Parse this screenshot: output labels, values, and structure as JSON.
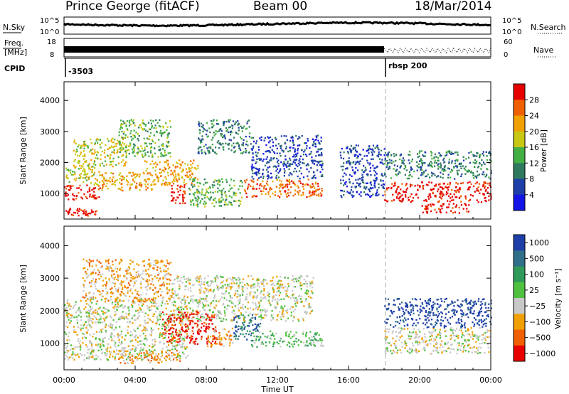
{
  "header": {
    "station": "Prince George (fitACF)",
    "beam": "Beam 00",
    "date": "18/Mar/2014"
  },
  "sky_panel": {
    "left_label": "N.Sky",
    "right_label": "N.Search",
    "left_ticks": [
      "10^5",
      "10^0"
    ],
    "right_ticks": [
      "10^5",
      "10^0"
    ]
  },
  "freq_panel": {
    "left_label_line1": "Freq.",
    "left_label_line2": "[MHz]",
    "right_label": "Nave",
    "left_ticks": [
      "18",
      "8"
    ],
    "right_ticks": [
      "60",
      "0"
    ]
  },
  "cpid_panel": {
    "label": "CPID",
    "segments": [
      {
        "text": "-3503",
        "start_hour": 0
      },
      {
        "text": "rbsp 200",
        "start_hour": 18
      }
    ]
  },
  "colors": {
    "power": [
      "#1414e6",
      "#1e3fa8",
      "#2f7a5e",
      "#44b044",
      "#c8c814",
      "#f0a000",
      "#f06000",
      "#e60000"
    ],
    "velocity": [
      "#1e3fa8",
      "#2f6f8a",
      "#2f9a5a",
      "#50c040",
      "#c8c8c8",
      "#f0a000",
      "#f06000",
      "#e60000"
    ],
    "ground_scatter": "#b4b4b4"
  },
  "chart_data": [
    {
      "type": "heatmap",
      "name": "power",
      "ylabel": "Slant Range [km]",
      "colorbar_label": "Power [dB]",
      "colorbar_ticks": [
        "4",
        "8",
        "12",
        "16",
        "20",
        "24",
        "28"
      ],
      "ylim": [
        180,
        4600
      ],
      "y_ticks": [
        1000,
        2000,
        3000,
        4000
      ],
      "regions": [
        {
          "t0": 0.0,
          "t1": 2.0,
          "r0": 800,
          "r1": 1300,
          "level": 7
        },
        {
          "t0": 0.0,
          "t1": 2.0,
          "r0": 1300,
          "r1": 1900,
          "level": 4
        },
        {
          "t0": 2.0,
          "t1": 5.0,
          "r0": 1100,
          "r1": 1700,
          "level": 5
        },
        {
          "t0": 0.5,
          "t1": 3.5,
          "r0": 1900,
          "r1": 2800,
          "level": 4
        },
        {
          "t0": 3.0,
          "t1": 6.0,
          "r0": 2200,
          "r1": 3400,
          "level": 3
        },
        {
          "t0": 4.5,
          "t1": 7.5,
          "r0": 1300,
          "r1": 2100,
          "level": 5
        },
        {
          "t0": 6.0,
          "t1": 6.8,
          "r0": 700,
          "r1": 1300,
          "level": 7
        },
        {
          "t0": 7.5,
          "t1": 10.5,
          "r0": 2300,
          "r1": 3400,
          "level": 2
        },
        {
          "t0": 10.5,
          "t1": 14.5,
          "r0": 1500,
          "r1": 2900,
          "level": 1
        },
        {
          "t0": 7.0,
          "t1": 10.0,
          "r0": 600,
          "r1": 1500,
          "level": 3
        },
        {
          "t0": 10.0,
          "t1": 14.5,
          "r0": 900,
          "r1": 1500,
          "level": 6
        },
        {
          "t0": 0.0,
          "t1": 1.8,
          "r0": 300,
          "r1": 550,
          "level": 7
        },
        {
          "t0": 15.5,
          "t1": 18.0,
          "r0": 900,
          "r1": 2600,
          "level": 1
        },
        {
          "t0": 18.0,
          "t1": 24.0,
          "r0": 1500,
          "r1": 2400,
          "level": 2
        },
        {
          "t0": 18.0,
          "t1": 24.0,
          "r0": 750,
          "r1": 1400,
          "level": 7
        },
        {
          "t0": 20.0,
          "t1": 23.0,
          "r0": 400,
          "r1": 700,
          "level": 7
        }
      ]
    },
    {
      "type": "heatmap",
      "name": "velocity",
      "ylabel": "Slant Range [km]",
      "colorbar_label": "Velocity [m s⁻¹]",
      "colorbar_ticks": [
        "1000",
        "500",
        "100",
        "25",
        "−25",
        "−100",
        "−500",
        "−1000"
      ],
      "ylim": [
        180,
        4600
      ],
      "y_ticks": [
        1000,
        2000,
        3000,
        4000
      ],
      "regions": [
        {
          "t0": 0.0,
          "t1": 7.0,
          "r0": 500,
          "r1": 2400,
          "level": 4
        },
        {
          "t0": 6.0,
          "t1": 14.0,
          "r0": 1700,
          "r1": 3100,
          "level": 4
        },
        {
          "t0": 1.0,
          "t1": 6.0,
          "r0": 2300,
          "r1": 3600,
          "level": 5
        },
        {
          "t0": 5.5,
          "t1": 8.5,
          "r0": 1000,
          "r1": 2000,
          "level": 7
        },
        {
          "t0": 8.0,
          "t1": 9.5,
          "r0": 900,
          "r1": 1500,
          "level": 5
        },
        {
          "t0": 9.5,
          "t1": 11.0,
          "r0": 1100,
          "r1": 1900,
          "level": 1
        },
        {
          "t0": 10.5,
          "t1": 14.5,
          "r0": 900,
          "r1": 1400,
          "level": 3
        },
        {
          "t0": 3.0,
          "t1": 6.5,
          "r0": 400,
          "r1": 800,
          "level": 5
        },
        {
          "t0": 18.0,
          "t1": 24.0,
          "r0": 700,
          "r1": 1500,
          "level": 4
        },
        {
          "t0": 18.0,
          "t1": 24.0,
          "r0": 1500,
          "r1": 2400,
          "level": 0
        }
      ]
    }
  ],
  "x_axis": {
    "label": "Time UT",
    "ticks": [
      "00:00",
      "04:00",
      "08:00",
      "12:00",
      "16:00",
      "20:00",
      "00:00"
    ],
    "tick_hours": [
      0,
      4,
      8,
      12,
      16,
      20,
      24
    ],
    "xlim": [
      0,
      24
    ]
  }
}
